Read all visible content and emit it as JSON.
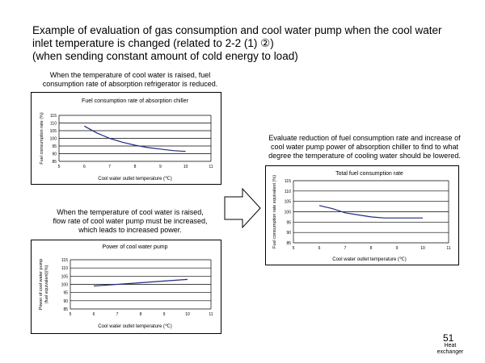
{
  "slide": {
    "title_lines": [
      "Example of evaluation of gas consumption and cool water pump when the cool water",
      "inlet temperature  is changed (related to 2-2 (1) ②)",
      "(when  sending constant amount  of cold energy to load)"
    ],
    "note_top": [
      "When the temperature of cool water is raised, fuel",
      "consumption rate of absorption refrigerator is reduced."
    ],
    "note_bottom": [
      "When the temperature of cool water is raised,",
      "flow rate of cool water pump must be increased,",
      "which leads to increased power."
    ],
    "note_right": [
      "Evaluate reduction of fuel consumption rate and increase of",
      "cool water pump power of absorption chiller to find to what",
      "degree the temperature of cooling water should be lowered."
    ],
    "page_number": "51",
    "footer_label": [
      "Heat",
      "exchanger"
    ],
    "arrow_icon": "right-arrow-icon"
  },
  "chart_data": [
    {
      "type": "line",
      "title": "Fuel consumption rate of absorption chiller",
      "xlabel": "Cool water outlet temperature (℃)",
      "ylabel": "Fuel consumption rate (%)",
      "x_ticks": [
        5,
        6,
        7,
        8,
        9,
        10,
        11
      ],
      "y_ticks": [
        85,
        90,
        95,
        100,
        105,
        110,
        115
      ],
      "xlim": [
        5,
        11
      ],
      "ylim": [
        85,
        115
      ],
      "grid": true,
      "color": "#1f2a80",
      "series": [
        {
          "x": [
            6,
            6.5,
            7,
            7.5,
            8,
            8.5,
            9,
            9.5,
            10
          ],
          "y": [
            108,
            103.5,
            100,
            97.5,
            95.5,
            94,
            93,
            92,
            91.5
          ]
        }
      ]
    },
    {
      "type": "line",
      "title": "Power of cool water pump",
      "xlabel": "Cool water outlet temperature (℃)",
      "ylabel": "Power of cool water pump (fuel equivalent)(%)",
      "x_ticks": [
        5,
        6,
        7,
        8,
        9,
        10,
        11
      ],
      "y_ticks": [
        85,
        90,
        95,
        100,
        105,
        110,
        115
      ],
      "xlim": [
        5,
        11
      ],
      "ylim": [
        85,
        115
      ],
      "grid": true,
      "color": "#1f2a80",
      "series": [
        {
          "x": [
            6,
            7,
            8,
            9,
            10
          ],
          "y": [
            99,
            100,
            101,
            102,
            103
          ]
        }
      ]
    },
    {
      "type": "line",
      "title": "Total fuel consumption rate",
      "xlabel": "Cool water outlet temperature (℃)",
      "ylabel": "Fuel consumption rate equivalent (%)",
      "x_ticks": [
        5,
        6,
        7,
        8,
        9,
        10,
        11
      ],
      "y_ticks": [
        85,
        90,
        95,
        100,
        105,
        110,
        115
      ],
      "xlim": [
        5,
        11
      ],
      "ylim": [
        85,
        115
      ],
      "grid": true,
      "color": "#1f2a80",
      "series": [
        {
          "x": [
            6,
            6.5,
            7,
            7.5,
            8,
            8.5,
            9,
            9.5,
            10
          ],
          "y": [
            103,
            101.5,
            99.5,
            98.5,
            97.5,
            97,
            97,
            97,
            97
          ]
        }
      ]
    }
  ]
}
